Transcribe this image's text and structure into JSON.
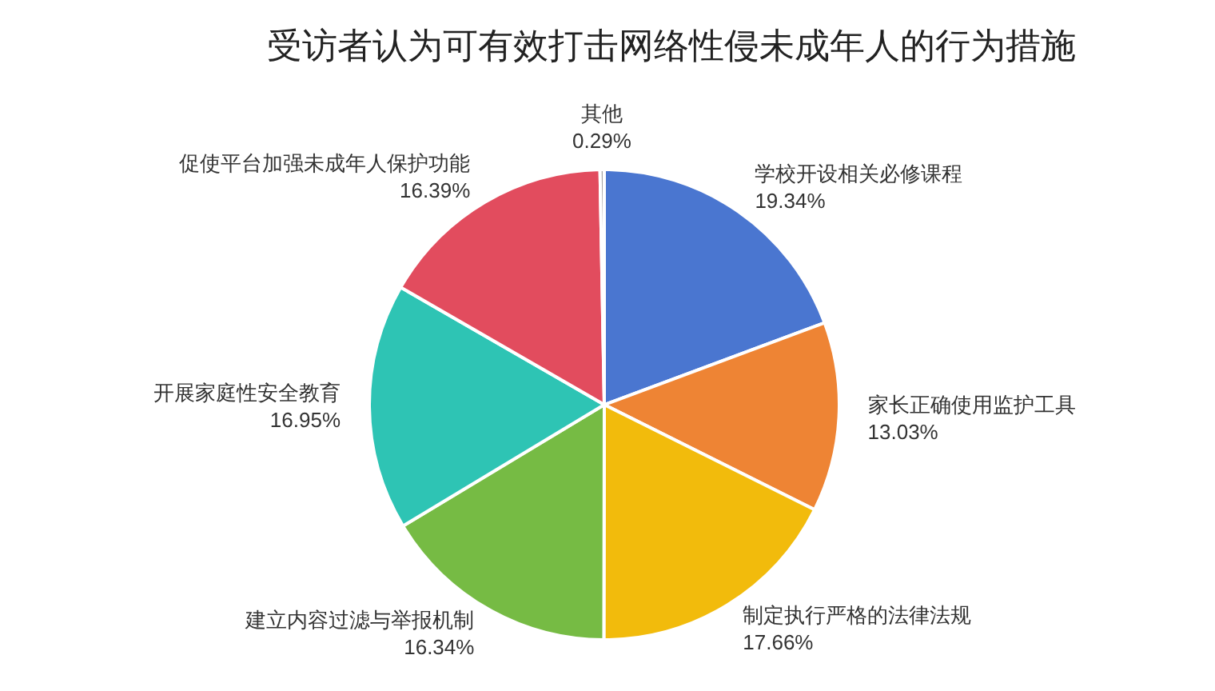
{
  "chart_data": {
    "type": "pie",
    "title": "受访者认为可有效打击网络性侵未成年人的行为措施",
    "categories": [
      "学校开设相关必修课程",
      "家长正确使用监护工具",
      "制定执行严格的法律法规",
      "建立内容过滤与举报机制",
      "开展家庭性安全教育",
      "促使平台加强未成年人保护功能",
      "其他"
    ],
    "values": [
      19.34,
      13.03,
      17.66,
      16.34,
      16.95,
      16.39,
      0.29
    ],
    "value_labels": [
      "19.34%",
      "13.03%",
      "17.66%",
      "16.34%",
      "16.95%",
      "16.39%",
      "0.29%"
    ],
    "colors": [
      "#4a76d0",
      "#ee8434",
      "#f2bb0c",
      "#76bb44",
      "#2ec4b4",
      "#e24c5e",
      "#a6a6a6"
    ],
    "legend": false
  }
}
